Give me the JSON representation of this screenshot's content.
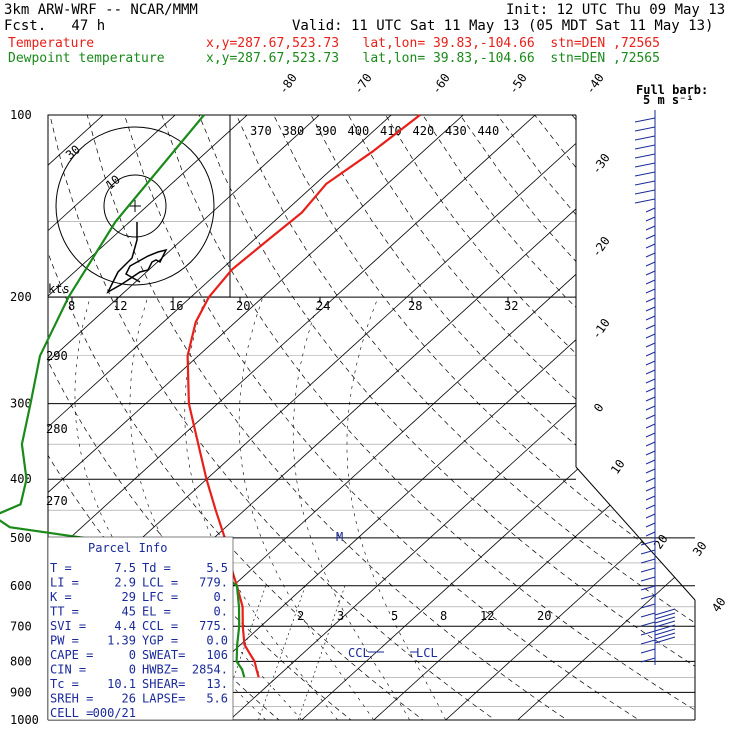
{
  "header": {
    "model": "3km ARW-WRF -- NCAR/MMM",
    "init": "Init: 12 UTC Thu 09 May 13",
    "fcst": "Fcst.   47 h",
    "valid": "Valid: 11 UTC Sat 11 May 13 (05 MDT Sat 11 May 13)",
    "temp_label": "Temperature",
    "temp_info": "x,y=287.67,523.73   lat,lon= 39.83,-104.66  stn=DEN ,72565",
    "dew_label": "Dewpoint temperature",
    "dew_info": "x,y=287.67,523.73   lat,lon= 39.83,-104.66  stn=DEN ,72565"
  },
  "barb_legend": [
    "Full barb:",
    "5 m s⁻¹"
  ],
  "hodograph": {
    "kts_label": "kts",
    "speed_labels": [
      "8",
      "12",
      "16",
      "20",
      "24",
      "28",
      "32"
    ],
    "ring_label": "30"
  },
  "parcel_info": {
    "title": "Parcel Info",
    "rows": [
      [
        "T  =",
        "7.5",
        "Td =",
        "5.5"
      ],
      [
        "LI =",
        "2.9",
        "LCL =",
        "779."
      ],
      [
        "K  =",
        "29",
        "LFC =",
        "0."
      ],
      [
        "TT =",
        "45",
        "EL  =",
        "0."
      ],
      [
        "SVI =",
        "4.4",
        "CCL =",
        "775."
      ],
      [
        "PW =",
        "1.39",
        "YGP =",
        "0.0"
      ],
      [
        "CAPE =",
        "0",
        "SWEAT=",
        "106"
      ],
      [
        "CIN =",
        "0",
        "HWBZ=",
        "2854."
      ],
      [
        "Tc =",
        "10.1",
        "SHEAR=",
        "13."
      ],
      [
        "SREH =",
        "26",
        "LAPSE=",
        "5.6"
      ],
      [
        "CELL =",
        "000/21",
        "",
        ""
      ]
    ]
  },
  "level_markers": [
    "M",
    "CCL",
    "LCL"
  ],
  "colors": {
    "temperature": "#e8201a",
    "dewpoint": "#1a8a1a",
    "parcel": "#1a2a9a"
  },
  "chart_data": {
    "type": "line",
    "pressure_levels_hpa": [
      100,
      200,
      300,
      400,
      500,
      600,
      700,
      800,
      900,
      1000
    ],
    "isotherm_labels_c": [
      -80,
      -70,
      -60,
      -50,
      -40,
      -30,
      -20,
      -10,
      0,
      10,
      20,
      30,
      40
    ],
    "theta_labels_k": [
      370,
      380,
      390,
      400,
      410,
      420,
      430,
      440
    ],
    "dry_adiabat_labels_k": [
      290,
      280,
      270
    ],
    "mixing_ratio_labels_gkg": [
      2,
      3,
      5,
      8,
      12,
      20
    ],
    "series": [
      {
        "name": "Temperature",
        "p_hpa": [
          850,
          825,
          800,
          775,
          750,
          700,
          650,
          600,
          550,
          500,
          450,
          400,
          350,
          300,
          250,
          220,
          200,
          180,
          160,
          145,
          130,
          115,
          100
        ],
        "t_c": [
          7.5,
          6.0,
          4.5,
          2.5,
          0.5,
          -2.5,
          -5.5,
          -9.5,
          -14.0,
          -18.5,
          -24.0,
          -30.0,
          -36.5,
          -44.0,
          -51.5,
          -55.5,
          -57.5,
          -58.5,
          -58.0,
          -57.5,
          -58.5,
          -57.0,
          -56.0
        ]
      },
      {
        "name": "Dewpoint temperature",
        "p_hpa": [
          850,
          825,
          800,
          750,
          700,
          650,
          600,
          570,
          540,
          500,
          480,
          460,
          440,
          400,
          350,
          300,
          250,
          200,
          150,
          100
        ],
        "td_c": [
          5.5,
          4.0,
          2.0,
          -0.5,
          -3.0,
          -6.0,
          -9.5,
          -14.0,
          -22.0,
          -38.0,
          -50.0,
          -54.0,
          -52.0,
          -55.0,
          -61.0,
          -66.0,
          -72.0,
          -77.0,
          -82.0,
          -86.0
        ]
      }
    ]
  }
}
